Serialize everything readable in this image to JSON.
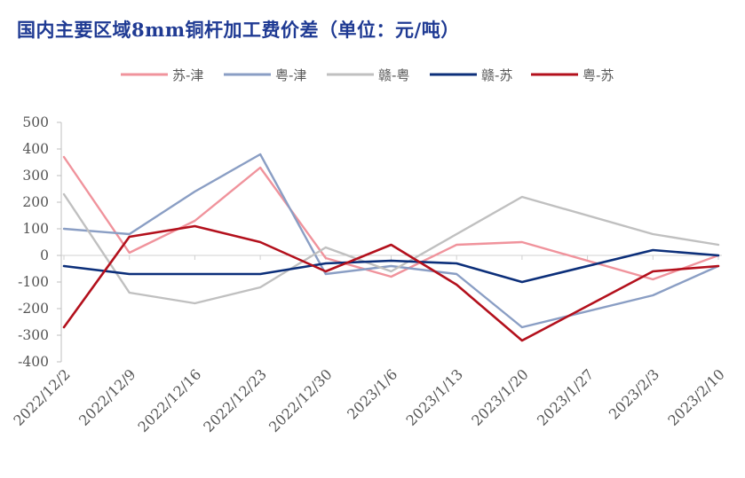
{
  "title": "国内主要区域8mm铜杆加工费价差（单位：元/吨）",
  "chart_data": {
    "type": "line",
    "title": "国内主要区域8mm铜杆加工费价差（单位：元/吨）",
    "xlabel": "",
    "ylabel": "",
    "ylim": [
      -400,
      500
    ],
    "yticks": [
      -400,
      -300,
      -200,
      -100,
      0,
      100,
      200,
      300,
      400,
      500
    ],
    "categories": [
      "2022/12/2",
      "2022/12/9",
      "2022/12/16",
      "2022/12/23",
      "2022/12/30",
      "2023/1/6",
      "2023/1/13",
      "2023/1/20",
      "2023/1/27",
      "2023/2/3",
      "2023/2/10"
    ],
    "legend_position": "top",
    "grid": false,
    "series": [
      {
        "name": "苏-津",
        "color": "#f0939c",
        "values": [
          370,
          10,
          130,
          330,
          -10,
          -80,
          40,
          50,
          null,
          -90,
          0
        ]
      },
      {
        "name": "粤-津",
        "color": "#8a9ec4",
        "values": [
          100,
          80,
          240,
          380,
          -70,
          -40,
          -70,
          -270,
          null,
          -150,
          -40
        ]
      },
      {
        "name": "赣-粤",
        "color": "#c0c0c0",
        "values": [
          230,
          -140,
          -180,
          -120,
          30,
          -60,
          80,
          220,
          null,
          80,
          40
        ]
      },
      {
        "name": "赣-苏",
        "color": "#0c2f7a",
        "values": [
          -40,
          -70,
          -70,
          -70,
          -30,
          -20,
          -30,
          -100,
          null,
          20,
          0
        ]
      },
      {
        "name": "粤-苏",
        "color": "#b3101c",
        "values": [
          -270,
          70,
          110,
          50,
          -60,
          40,
          -110,
          -320,
          null,
          -60,
          -40
        ]
      }
    ]
  }
}
